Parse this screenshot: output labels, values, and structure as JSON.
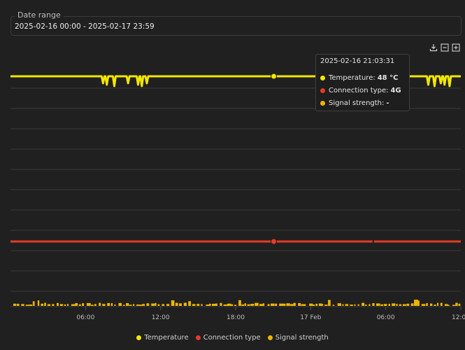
{
  "date_range": {
    "label": "Date range",
    "value": "2025-02-16 00:00 - 2025-02-17 23:59"
  },
  "toolbar": {
    "icons": [
      "download-icon",
      "zoom-out-icon",
      "zoom-in-icon"
    ]
  },
  "tooltip": {
    "title": "2025-02-16 21:03:31",
    "rows": [
      {
        "label": "Temperature:",
        "value": "48 °C",
        "color": "#f2e600"
      },
      {
        "label": "Connection type:",
        "value": "4G",
        "color": "#e53b26"
      },
      {
        "label": "Signal strength:",
        "value": "-",
        "color": "#f0b400"
      }
    ]
  },
  "legend": [
    {
      "label": "Temperature",
      "color": "#f2e600"
    },
    {
      "label": "Connection type",
      "color": "#e53b26"
    },
    {
      "label": "Signal strength",
      "color": "#f0b400"
    }
  ],
  "chart_data": {
    "type": "line",
    "x_tick_labels": [
      "06:00",
      "12:00",
      "18:00",
      "17 Feb",
      "06:00",
      "12:00"
    ],
    "grid": true,
    "legend_position": "bottom",
    "highlight_time": "2025-02-16 21:03:31",
    "series": [
      {
        "name": "Temperature",
        "color": "#f2e600",
        "baseline_value": 48,
        "dips_hours": [
          7.4,
          7.7,
          8.3,
          9.4,
          10.2,
          10.5,
          10.9,
          33.4,
          33.9,
          34.4,
          34.7,
          35.1
        ]
      },
      {
        "name": "Connection type",
        "color": "#e53b26",
        "baseline_value": "4G",
        "gap_hours": [
          29.0
        ]
      },
      {
        "name": "Signal strength",
        "color": "#f0b400",
        "baseline_value": "-"
      }
    ]
  }
}
